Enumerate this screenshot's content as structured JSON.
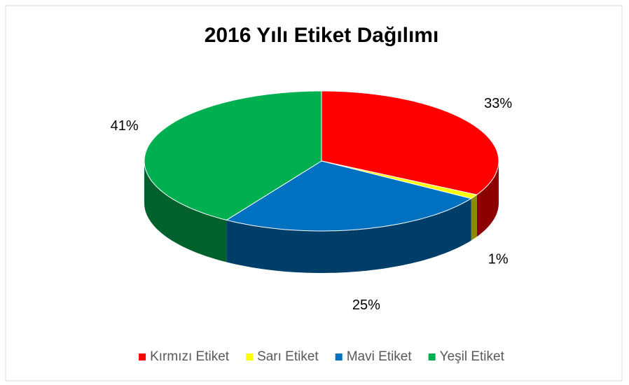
{
  "chart_data": {
    "type": "pie",
    "title": "2016 Yılı Etiket Dağılımı",
    "categories": [
      "Kırmızı Etiket",
      "Sarı Etiket",
      "Mavi Etiket",
      "Yeşil Etiket"
    ],
    "values": [
      33,
      1,
      25,
      41
    ],
    "value_labels": [
      "33%",
      "1%",
      "25%",
      "41%"
    ],
    "colors": [
      "#ff0000",
      "#ffff00",
      "#0070c0",
      "#00b050"
    ],
    "legend": "bottom"
  }
}
